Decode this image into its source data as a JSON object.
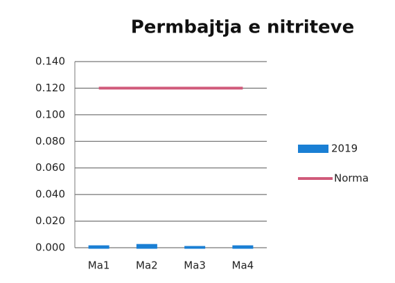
{
  "chart_data": {
    "type": "bar",
    "title": "Permbajtja e nitriteve",
    "categories": [
      "Ma1",
      "Ma2",
      "Ma3",
      "Ma4"
    ],
    "series": [
      {
        "name": "2019",
        "type": "bar",
        "color": "#1a7fd4",
        "values": [
          0.001,
          0.002,
          0.0005,
          0.001
        ]
      },
      {
        "name": "Norma",
        "type": "line",
        "color": "#d05a7a",
        "values": [
          0.12,
          0.12,
          0.12,
          0.12
        ]
      }
    ],
    "ylim": [
      0,
      0.14
    ],
    "yticks": [
      {
        "value": 0,
        "label": "0.000"
      },
      {
        "value": 0.02,
        "label": "0.020"
      },
      {
        "value": 0.04,
        "label": "0.040"
      },
      {
        "value": 0.06,
        "label": "0.060"
      },
      {
        "value": 0.08,
        "label": "0.080"
      },
      {
        "value": 0.1,
        "label": "0.100"
      },
      {
        "value": 0.12,
        "label": "0.120"
      },
      {
        "value": 0.14,
        "label": "0.140"
      }
    ],
    "grid": true,
    "legend": "right"
  }
}
